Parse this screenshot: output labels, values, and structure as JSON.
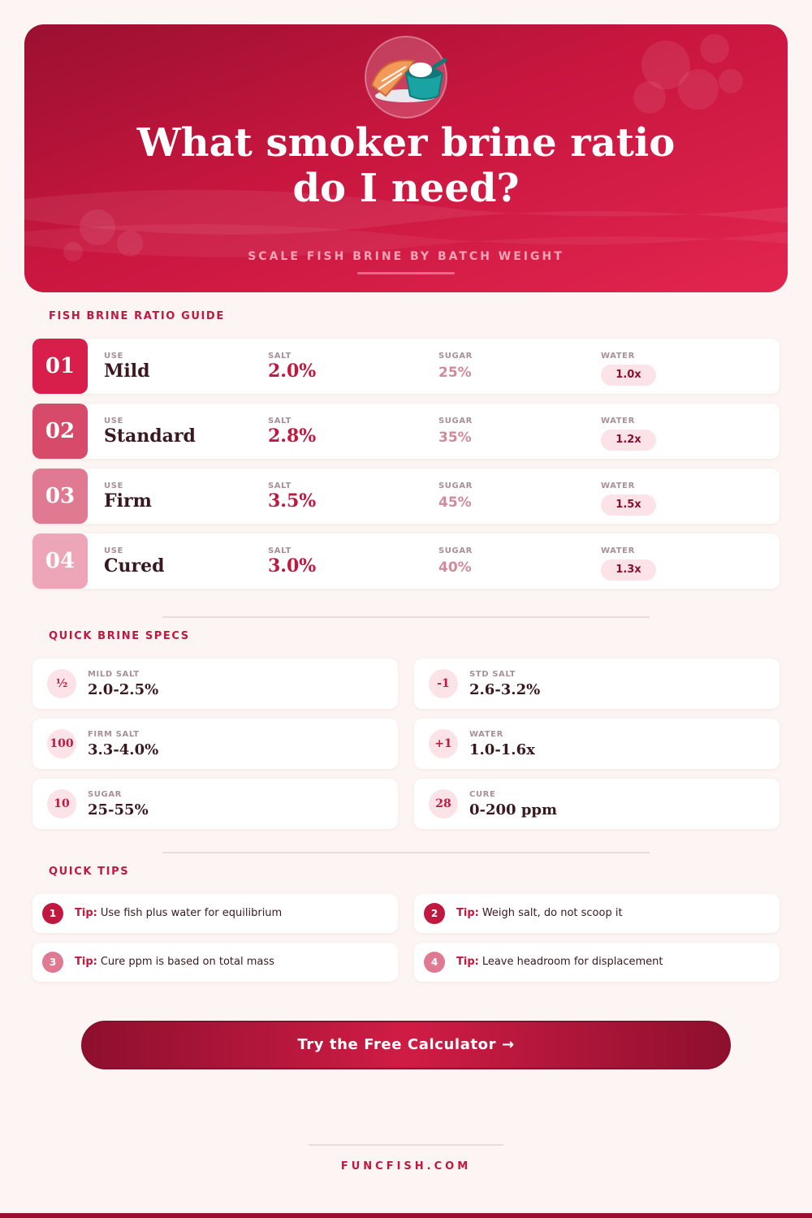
{
  "header": {
    "title": "What smoker brine ratio do I need?",
    "subtitle": "SCALE FISH BRINE BY BATCH WEIGHT"
  },
  "guide": {
    "heading": "FISH BRINE RATIO GUIDE",
    "columns": [
      "USE",
      "SALT",
      "SUGAR",
      "WATER"
    ],
    "rows": [
      {
        "number": "01",
        "use": "Mild",
        "salt": "2.0%",
        "sugar": "25%",
        "water": "1.0x"
      },
      {
        "number": "02",
        "use": "Standard",
        "salt": "2.8%",
        "sugar": "35%",
        "water": "1.2x"
      },
      {
        "number": "03",
        "use": "Firm",
        "salt": "3.5%",
        "sugar": "45%",
        "water": "1.5x"
      },
      {
        "number": "04",
        "use": "Cured",
        "salt": "3.0%",
        "sugar": "40%",
        "water": "1.3x"
      }
    ]
  },
  "specs": {
    "heading": "QUICK BRINE SPECS",
    "items": [
      {
        "icon": "½",
        "label": "MILD SALT",
        "value": "2.0-2.5%"
      },
      {
        "icon": "-1",
        "label": "STD SALT",
        "value": "2.6-3.2%"
      },
      {
        "icon": "100",
        "label": "FIRM SALT",
        "value": "3.3-4.0%"
      },
      {
        "icon": "+1",
        "label": "WATER",
        "value": "1.0-1.6x"
      },
      {
        "icon": "10",
        "label": "SUGAR",
        "value": "25-55%"
      },
      {
        "icon": "28",
        "label": "CURE",
        "value": "0-200 ppm"
      }
    ]
  },
  "tips": {
    "heading": "QUICK TIPS",
    "prefix": "Tip:",
    "items": [
      {
        "number": "1",
        "text": "Use fish plus water for equilibrium"
      },
      {
        "number": "2",
        "text": "Weigh salt, do not scoop it"
      },
      {
        "number": "3",
        "text": "Cure ppm is based on total mass"
      },
      {
        "number": "4",
        "text": "Leave headroom for displacement"
      }
    ]
  },
  "cta": "Try the Free Calculator →",
  "footer": "FUNCFISH.COM"
}
